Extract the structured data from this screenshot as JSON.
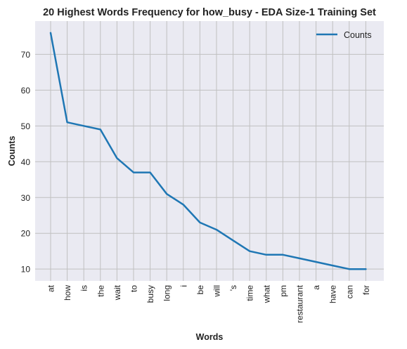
{
  "chart_data": {
    "type": "line",
    "title": "20 Highest Words Frequency for how_busy - EDA Size-1 Training Set",
    "xlabel": "Words",
    "ylabel": "Counts",
    "categories": [
      "at",
      "how",
      "is",
      "the",
      "wait",
      "to",
      "busy",
      "long",
      "i",
      "be",
      "will",
      "'s",
      "time",
      "what",
      "pm",
      "restaurant",
      "a",
      "have",
      "can",
      "for"
    ],
    "series": [
      {
        "name": "Counts",
        "values": [
          76,
          51,
          50,
          49,
          41,
          37,
          37,
          31,
          28,
          23,
          21,
          18,
          15,
          14,
          14,
          13,
          12,
          11,
          10,
          10
        ]
      }
    ],
    "y_ticks": [
      10,
      20,
      30,
      40,
      50,
      60,
      70
    ],
    "ylim": [
      6.7,
      79.3
    ],
    "grid": true,
    "legend_position": "top-right",
    "line_color": "#1f77b4",
    "background_color": "#eaeaf2",
    "grid_color": "#c0c0c0"
  }
}
